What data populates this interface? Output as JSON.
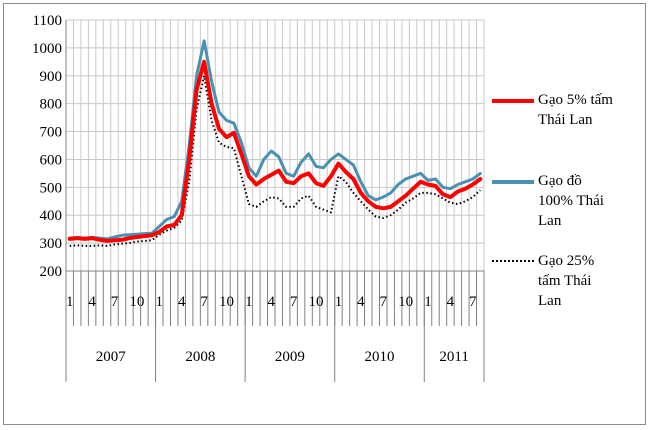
{
  "chart_data": {
    "type": "line",
    "ylim": [
      200,
      1100
    ],
    "yticks": [
      200,
      300,
      400,
      500,
      600,
      700,
      800,
      900,
      1000,
      1100
    ],
    "month_tick_labels": [
      "1",
      "4",
      "7",
      "10",
      "1",
      "4",
      "7",
      "10",
      "1",
      "4",
      "7",
      "10",
      "1",
      "4",
      "7",
      "10",
      "1",
      "4",
      "7"
    ],
    "years": [
      "2007",
      "2008",
      "2009",
      "2010",
      "2011"
    ],
    "grid": true,
    "legend_position": "right",
    "series": [
      {
        "name": "Gạo 5% tấm\nThái Lan",
        "color": "#ff0000",
        "style": "solid",
        "values": [
          315,
          318,
          315,
          318,
          312,
          308,
          310,
          312,
          318,
          322,
          325,
          328,
          340,
          360,
          365,
          400,
          600,
          850,
          950,
          800,
          710,
          680,
          695,
          620,
          540,
          510,
          530,
          545,
          560,
          520,
          515,
          540,
          550,
          515,
          505,
          540,
          585,
          555,
          530,
          480,
          450,
          430,
          425,
          430,
          450,
          470,
          495,
          520,
          510,
          505,
          475,
          465,
          485,
          495,
          510,
          530
        ]
      },
      {
        "name": "Gạo đồ\n100% Thái\nLan",
        "color": "#4a90b0",
        "style": "solid",
        "values": [
          318,
          320,
          318,
          320,
          318,
          315,
          322,
          328,
          330,
          332,
          334,
          335,
          360,
          385,
          395,
          450,
          650,
          900,
          1025,
          880,
          770,
          740,
          730,
          660,
          570,
          540,
          600,
          630,
          610,
          550,
          540,
          590,
          620,
          575,
          570,
          600,
          620,
          600,
          580,
          520,
          470,
          455,
          465,
          480,
          510,
          530,
          540,
          550,
          525,
          530,
          500,
          495,
          510,
          520,
          530,
          550
        ]
      },
      {
        "name": "Gạo 25%\ntấm Thái\nLan",
        "color": "#000000",
        "style": "dotted",
        "values": [
          290,
          292,
          290,
          290,
          292,
          290,
          295,
          298,
          300,
          305,
          308,
          310,
          330,
          345,
          355,
          380,
          520,
          780,
          900,
          740,
          660,
          645,
          640,
          540,
          440,
          430,
          450,
          465,
          460,
          430,
          430,
          460,
          470,
          430,
          420,
          410,
          540,
          520,
          480,
          450,
          420,
          395,
          390,
          400,
          420,
          445,
          460,
          480,
          480,
          475,
          460,
          445,
          440,
          450,
          465,
          490
        ]
      }
    ]
  }
}
